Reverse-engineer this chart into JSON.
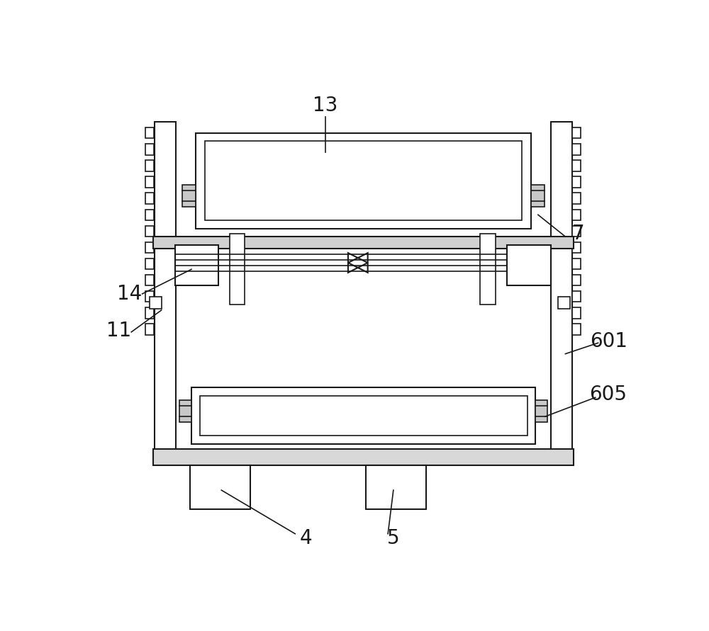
{
  "bg_color": "#ffffff",
  "line_color": "#1a1a1a",
  "lw_thick": 2.0,
  "lw_med": 1.5,
  "lw_thin": 1.2,
  "fig_w": 10.0,
  "fig_h": 8.91,
  "labels": [
    "13",
    "7",
    "14",
    "11",
    "601",
    "605",
    "4",
    "5"
  ]
}
